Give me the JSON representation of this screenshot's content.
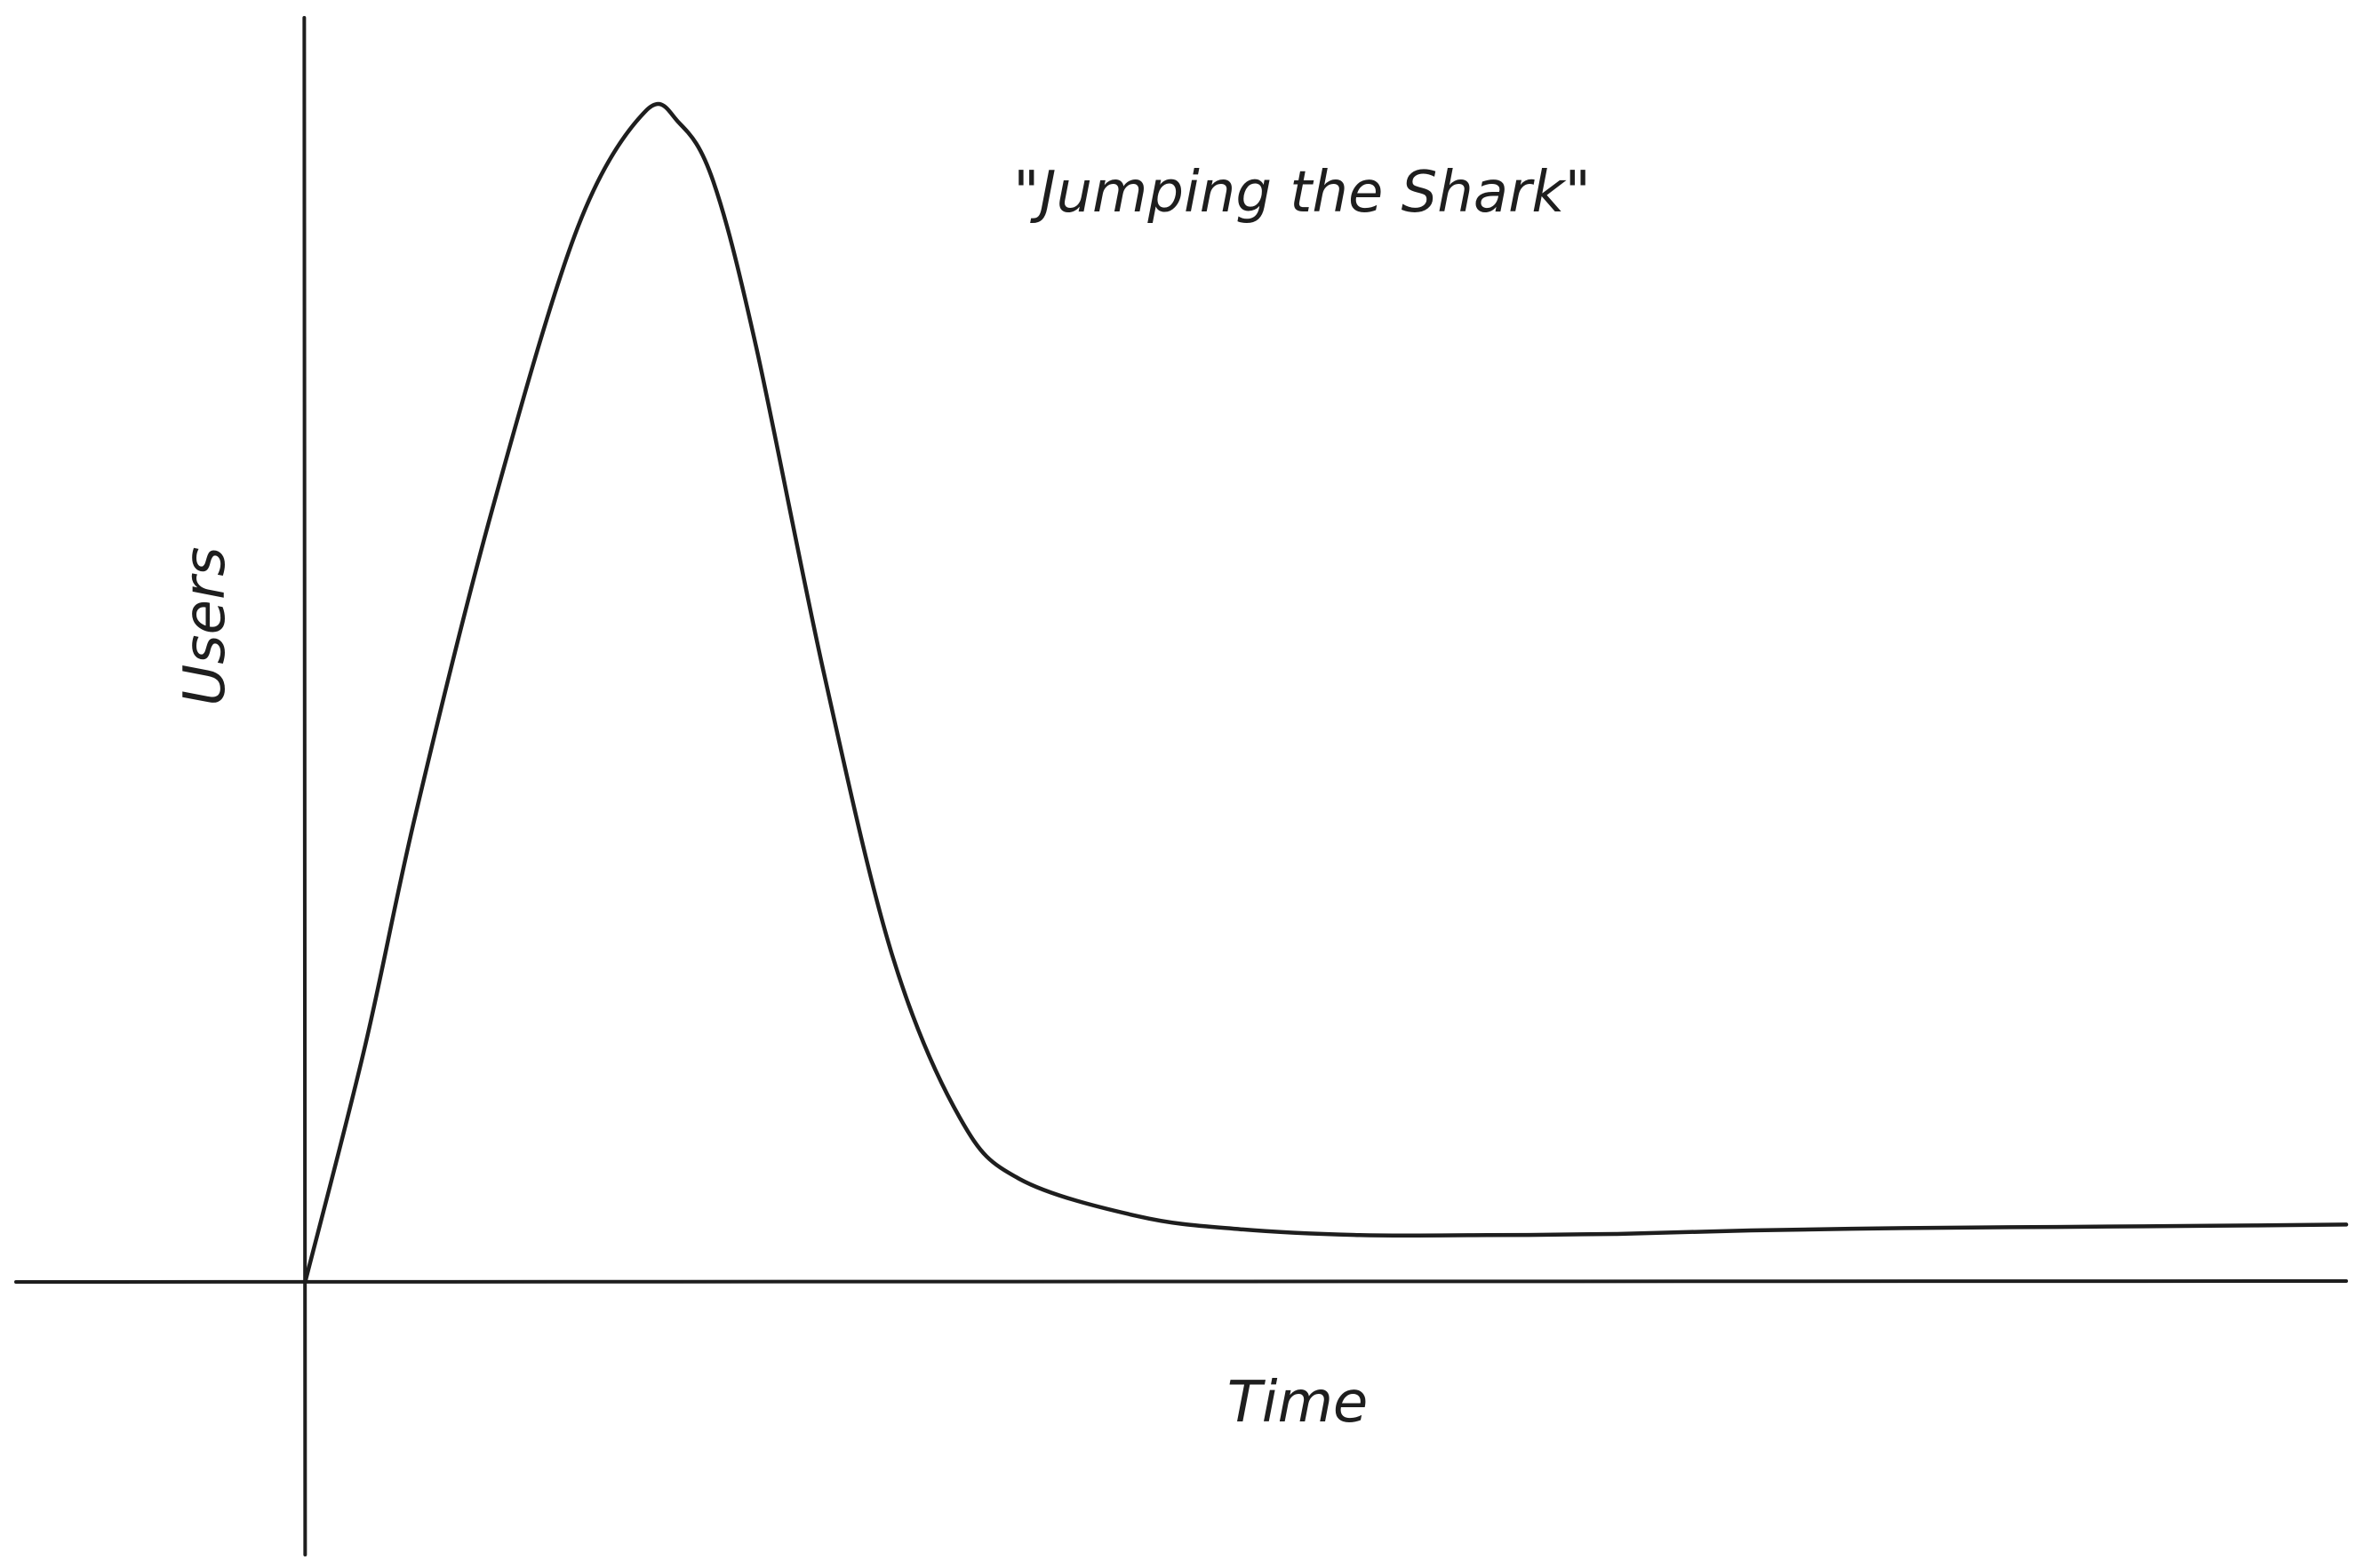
{
  "chart_data": {
    "type": "line",
    "title": "\"Jumping the Shark\"",
    "xlabel": "Time",
    "ylabel": "Users",
    "grid": false,
    "legend": "none",
    "axis_ticks": "none",
    "x": [
      0,
      0.7,
      1.3,
      2.2,
      3.2,
      4.0,
      4.4,
      4.8,
      5.3,
      6.1,
      6.9,
      7.7,
      8.4,
      9.8,
      11.0,
      12.4,
      13.9,
      15.4,
      17.0,
      18.8,
      20.6,
      22.4,
      24.0
    ],
    "series": [
      {
        "values": [
          0,
          20,
          40,
          66,
          90,
          100,
          99,
          94,
          80,
          52,
          28,
          14,
          8.8,
          5.6,
          4.5,
          4.0,
          4.0,
          4.1,
          4.4,
          4.6,
          4.7,
          4.8,
          4.9
        ]
      }
    ],
    "xlim": [
      -3.4,
      24
    ],
    "ylim": [
      -23.3,
      108
    ],
    "colors": {
      "line": "#1e1e1e",
      "axes": "#1e1e1e",
      "background": "#ffffff"
    }
  }
}
